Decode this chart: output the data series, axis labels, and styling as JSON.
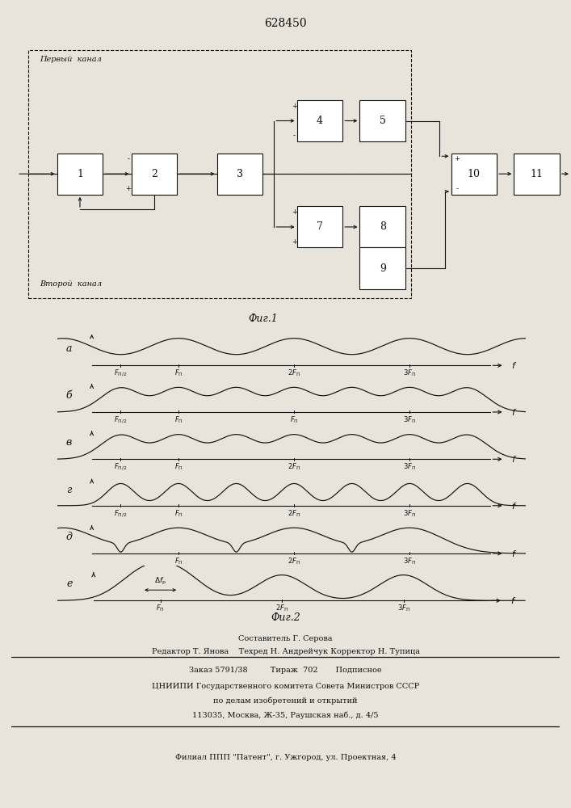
{
  "title": "628450",
  "fig1_label": "Фиг.1",
  "fig2_label": "Фиг.2",
  "channel1_label": "Первый  канал",
  "channel2_label": "Второй  канал",
  "bg_color": "#e8e4dc",
  "line_color": "#111111",
  "subplot_labels": [
    "а",
    "б",
    "в",
    "г",
    "д",
    "е"
  ],
  "bottom_texts": [
    "Составитель Г. Серова",
    "Редактор Т. Янова    Техред Н. Андрейчук Корректор Н. Тупица",
    "Заказ 5791/38         Тираж  702       Подписное",
    "ЦНИИПИ Государственного комитета Совета Министров СССР",
    "по делам изобретений и открытий",
    "113035, Москва, Ж-35, Раушская наб., д. 4/5",
    "Филиал ППП \"Патент\", г. Ужгород, ул. Проектная, 4"
  ]
}
